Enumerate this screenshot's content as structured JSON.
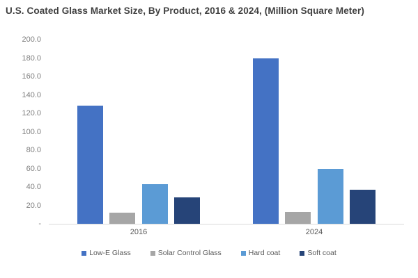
{
  "chart_data": {
    "type": "bar",
    "title": "U.S. Coated Glass Market Size, By Product, 2016 & 2024, (Million Square Meter)",
    "categories": [
      "2016",
      "2024"
    ],
    "series": [
      {
        "name": "Low-E Glass",
        "color": "#4472c4",
        "values": [
          128,
          180
        ]
      },
      {
        "name": "Solar Control Glass",
        "color": "#a6a6a6",
        "values": [
          12,
          13
        ]
      },
      {
        "name": "Hard coat",
        "color": "#5b9bd5",
        "values": [
          43,
          60
        ]
      },
      {
        "name": "Soft coat",
        "color": "#264478",
        "values": [
          29,
          37
        ]
      }
    ],
    "xlabel": "",
    "ylabel": "",
    "ylim": [
      0,
      200
    ],
    "ytick_labels": [
      "200.0",
      "180.0",
      "160.0",
      "140.0",
      "120.0",
      "100.0",
      "80.0",
      "60.0",
      "40.0",
      "20.0",
      "-"
    ],
    "ytick_values": [
      200,
      180,
      160,
      140,
      120,
      100,
      80,
      60,
      40,
      20,
      0
    ],
    "grid": false,
    "legend_position": "bottom",
    "colors": {
      "title_text": "#404040",
      "axis_tick_text": "#7f7f7f",
      "category_text": "#595959",
      "legend_text": "#595959",
      "axis_line": "#d9d9d9",
      "background": "#ffffff"
    }
  }
}
